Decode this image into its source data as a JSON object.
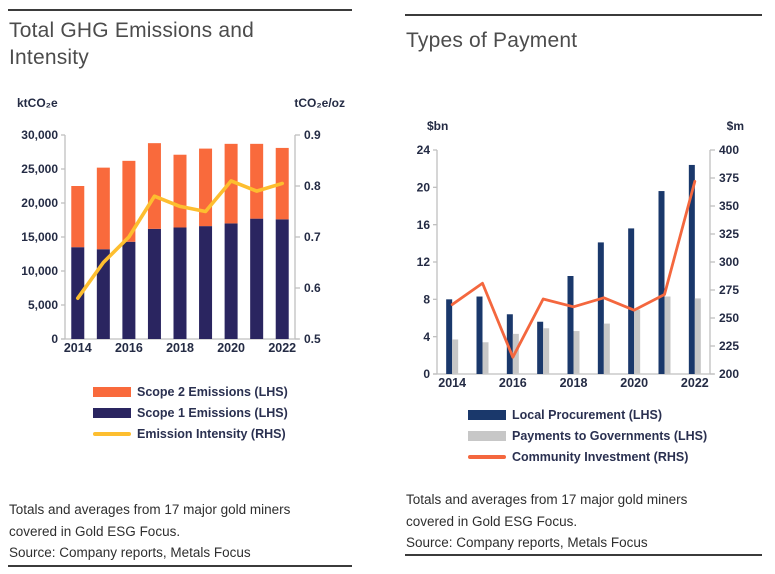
{
  "colors": {
    "scope2_orange": "#F96A3C",
    "scope1_navy": "#2A2560",
    "intensity_yellow": "#FDBE2F",
    "procurement_navy": "#1A386B",
    "governments_gray": "#C7C7C7",
    "community_orange": "#F4673E",
    "axis_gray": "#BFBFBF",
    "tick_text": "#242B44",
    "legend_text": "#2A3050",
    "title_gray": "#4C4C4C",
    "rule_dark": "#3B3B3B",
    "footer_text": "#2E2E2E"
  },
  "panels": {
    "left": {
      "footnote_line1": "Totals and averages from 17 major gold miners",
      "footnote_line2": "covered in Gold ESG Focus.",
      "source": "Source: Company reports, Metals Focus"
    },
    "right": {
      "footnote_line1": "Totals and averages from 17 major gold miners",
      "footnote_line2": "covered in Gold ESG Focus.",
      "source": "Source: Company reports, Metals Focus"
    }
  },
  "chart_data": [
    {
      "type": "bar",
      "bar_mode": "stacked",
      "title": "Total GHG Emissions and Intensity",
      "categories": [
        2014,
        2015,
        2016,
        2017,
        2018,
        2019,
        2020,
        2021,
        2022
      ],
      "xticks": [
        2014,
        2016,
        2018,
        2020,
        2022
      ],
      "axis_left": {
        "label": "ktCO₂e",
        "min": 0,
        "max": 30000,
        "step": 5000,
        "format": "comma"
      },
      "axis_right": {
        "label": "tCO₂e/oz",
        "min": 0.5,
        "max": 0.9,
        "step": 0.1,
        "format": "dec1"
      },
      "grid": false,
      "legend_position": "bottom",
      "series": [
        {
          "name": "Scope 1 Emissions (LHS)",
          "type": "bar",
          "axis": "left",
          "color": "#2A2560",
          "values": [
            13500,
            13200,
            14300,
            16200,
            16400,
            16600,
            17000,
            17700,
            17600
          ]
        },
        {
          "name": "Scope 2 Emissions (LHS)",
          "type": "bar",
          "axis": "left",
          "color": "#F96A3C",
          "values": [
            9000,
            12000,
            11900,
            12600,
            10700,
            11400,
            11700,
            11000,
            10500
          ]
        },
        {
          "name": "Emission Intensity (RHS)",
          "type": "line",
          "axis": "right",
          "color": "#FDBE2F",
          "values": [
            0.58,
            0.65,
            0.7,
            0.78,
            0.76,
            0.75,
            0.81,
            0.79,
            0.805
          ]
        }
      ]
    },
    {
      "type": "bar",
      "bar_mode": "grouped",
      "title": "Types of Payment",
      "categories": [
        2014,
        2015,
        2016,
        2017,
        2018,
        2019,
        2020,
        2021,
        2022
      ],
      "xticks": [
        2014,
        2016,
        2018,
        2020,
        2022
      ],
      "axis_left": {
        "label": "$bn",
        "min": 0,
        "max": 24,
        "step": 4,
        "format": "int"
      },
      "axis_right": {
        "label": "$m",
        "min": 200,
        "max": 400,
        "step": 25,
        "format": "int"
      },
      "grid": false,
      "legend_position": "bottom",
      "series": [
        {
          "name": "Local Procurement (LHS)",
          "type": "bar",
          "axis": "left",
          "color": "#1A386B",
          "values": [
            8.0,
            8.3,
            6.4,
            5.6,
            10.5,
            14.1,
            15.6,
            19.6,
            22.4
          ]
        },
        {
          "name": "Payments to Governments (LHS)",
          "type": "bar",
          "axis": "left",
          "color": "#C7C7C7",
          "values": [
            3.7,
            3.4,
            4.3,
            4.9,
            4.6,
            5.4,
            6.9,
            8.3,
            8.1
          ]
        },
        {
          "name": "Community Investment (RHS)",
          "type": "line",
          "axis": "right",
          "color": "#F4673E",
          "values": [
            262,
            281,
            215,
            267,
            260,
            268,
            257,
            271,
            372
          ]
        }
      ]
    }
  ]
}
